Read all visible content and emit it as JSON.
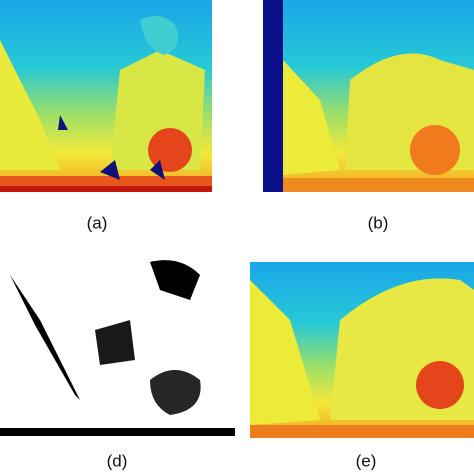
{
  "panels": [
    {
      "label": "(a)"
    },
    {
      "label": "(b)"
    },
    {
      "label": "(d)"
    },
    {
      "label": "(e)"
    }
  ]
}
